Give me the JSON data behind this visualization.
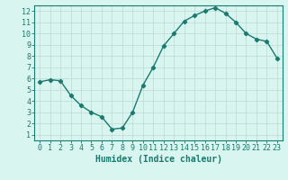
{
  "x": [
    0,
    1,
    2,
    3,
    4,
    5,
    6,
    7,
    8,
    9,
    10,
    11,
    12,
    13,
    14,
    15,
    16,
    17,
    18,
    19,
    20,
    21,
    22,
    23
  ],
  "y": [
    5.7,
    5.9,
    5.8,
    4.5,
    3.6,
    3.0,
    2.6,
    1.5,
    1.6,
    3.0,
    5.4,
    7.0,
    8.9,
    10.0,
    11.1,
    11.6,
    12.0,
    12.3,
    11.8,
    11.0,
    10.0,
    9.5,
    9.3,
    7.8
  ],
  "line_color": "#1a7a6e",
  "bg_color": "#d8f5f0",
  "grid_color": "#c0d8d4",
  "xlabel": "Humidex (Indice chaleur)",
  "ylim": [
    0.5,
    12.5
  ],
  "xlim": [
    -0.5,
    23.5
  ],
  "yticks": [
    1,
    2,
    3,
    4,
    5,
    6,
    7,
    8,
    9,
    10,
    11,
    12
  ],
  "xticks": [
    0,
    1,
    2,
    3,
    4,
    5,
    6,
    7,
    8,
    9,
    10,
    11,
    12,
    13,
    14,
    15,
    16,
    17,
    18,
    19,
    20,
    21,
    22,
    23
  ],
  "marker": "D",
  "markersize": 2.2,
  "linewidth": 1.0,
  "xlabel_fontsize": 7,
  "tick_fontsize": 6
}
